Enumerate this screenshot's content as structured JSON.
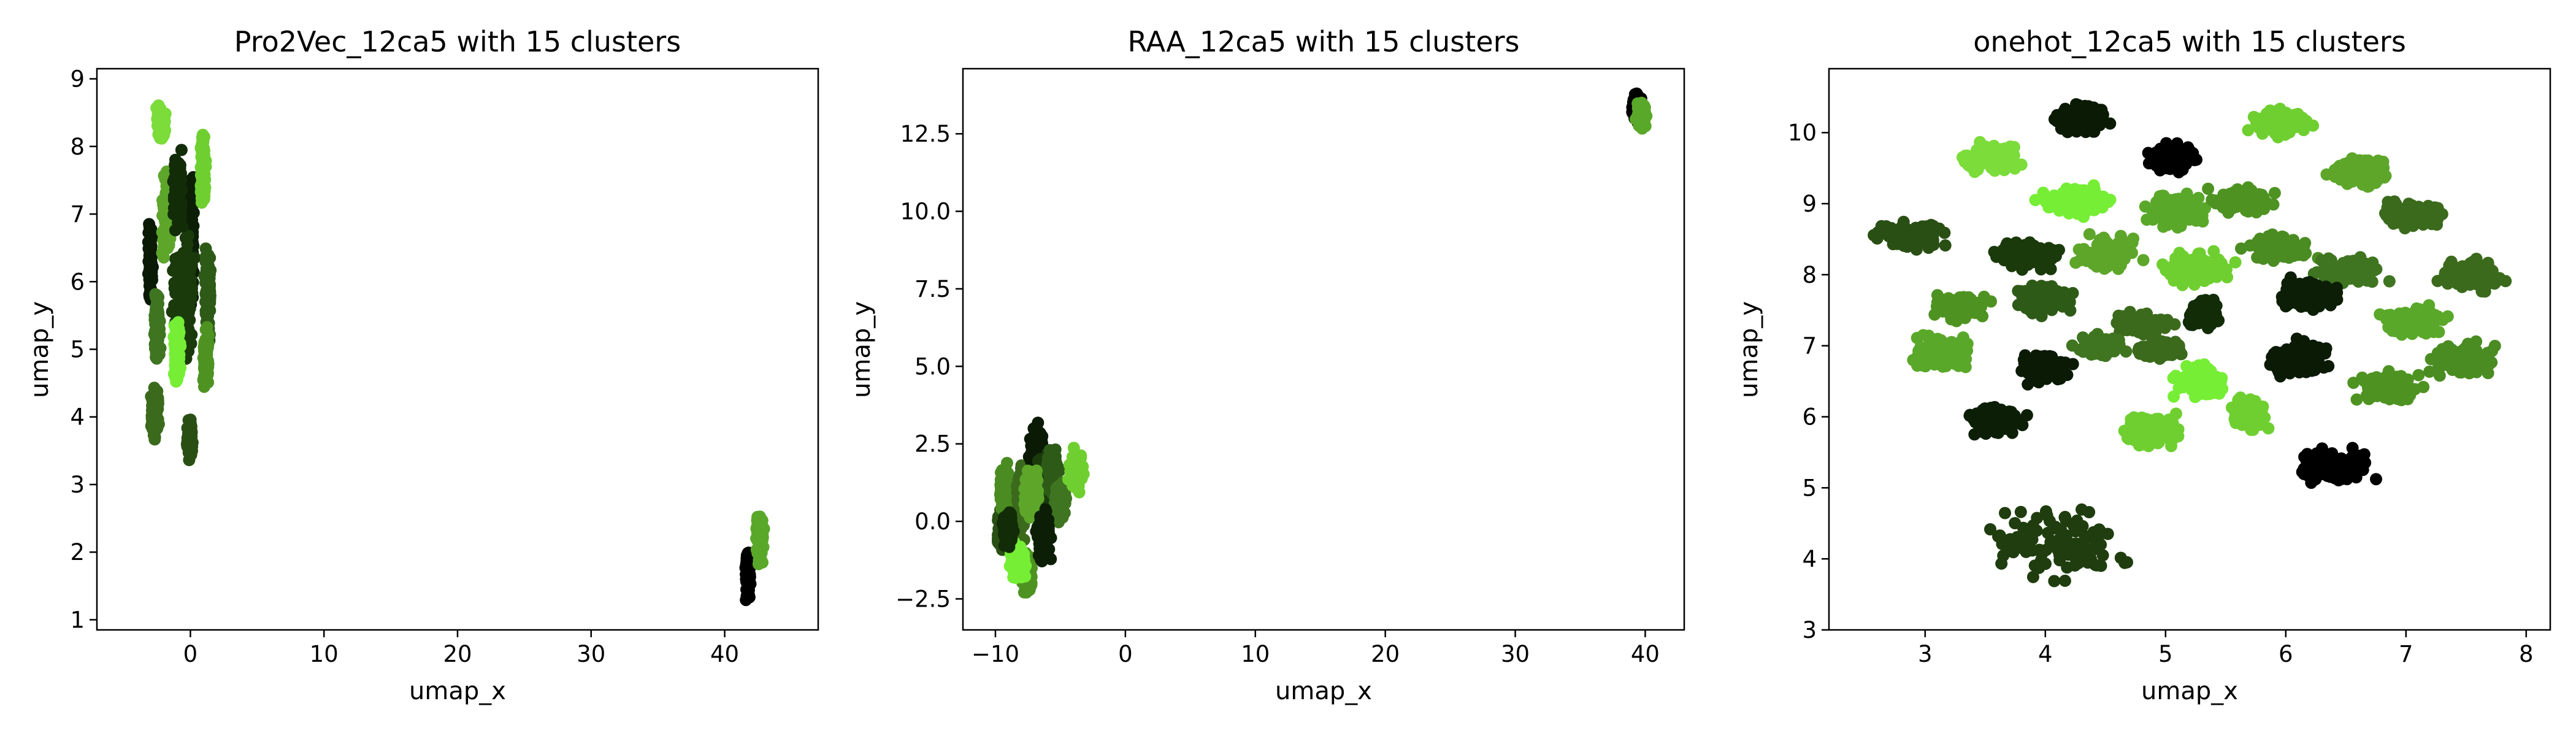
{
  "chart_data": [
    {
      "type": "scatter",
      "title": "Pro2Vec_12ca5 with 15 clusters",
      "xlabel": "umap_x",
      "ylabel": "umap_y",
      "xlim": [
        -7,
        47
      ],
      "ylim": [
        0.85,
        9.15
      ],
      "xticks": [
        0,
        10,
        20,
        30,
        40
      ],
      "yticks": [
        1,
        2,
        3,
        4,
        5,
        6,
        7,
        8,
        9
      ],
      "clusters": [
        {
          "x": [
            -3.2,
            -2.8
          ],
          "y": [
            5.5,
            7.0
          ],
          "color": "#0a1a05"
        },
        {
          "x": [
            -0.2,
            0.3
          ],
          "y": [
            5.6,
            8.0
          ],
          "color": "#0c1f06"
        },
        {
          "x": [
            -1.5,
            0.5
          ],
          "y": [
            4.5,
            7.0
          ],
          "color": "#1a3a0c"
        },
        {
          "x": [
            1.0,
            1.6
          ],
          "y": [
            5.0,
            6.6
          ],
          "color": "#2e5a18"
        },
        {
          "x": [
            -2.8,
            -2.2
          ],
          "y": [
            4.6,
            6.0
          ],
          "color": "#3f7520"
        },
        {
          "x": [
            -3.0,
            -2.3
          ],
          "y": [
            3.6,
            4.5
          ],
          "color": "#3b6a1c"
        },
        {
          "x": [
            -0.3,
            0.2
          ],
          "y": [
            3.3,
            4.1
          ],
          "color": "#2a4f14"
        },
        {
          "x": [
            -2.6,
            -1.8
          ],
          "y": [
            8.0,
            8.7
          ],
          "color": "#7bdc3a"
        },
        {
          "x": [
            0.7,
            1.2
          ],
          "y": [
            7.0,
            8.3
          ],
          "color": "#6fcf30"
        },
        {
          "x": [
            -2.2,
            -1.4
          ],
          "y": [
            6.2,
            7.8
          ],
          "color": "#5da62a"
        },
        {
          "x": [
            -1.3,
            -0.7
          ],
          "y": [
            4.3,
            5.7
          ],
          "color": "#76ee35"
        },
        {
          "x": [
            0.9,
            1.4
          ],
          "y": [
            4.3,
            5.4
          ],
          "color": "#4e9322"
        },
        {
          "x": [
            41.5,
            42.0
          ],
          "y": [
            1.2,
            2.1
          ],
          "color": "#000000"
        },
        {
          "x": [
            42.3,
            43.0
          ],
          "y": [
            1.7,
            2.7
          ],
          "color": "#5aa82a"
        },
        {
          "x": [
            -1.4,
            -0.5
          ],
          "y": [
            6.5,
            8.1
          ],
          "color": "#122c08"
        }
      ]
    },
    {
      "type": "scatter",
      "title": "RAA_12ca5 with 15 clusters",
      "xlabel": "umap_x",
      "ylabel": "umap_y",
      "xlim": [
        -12.5,
        43.0
      ],
      "ylim": [
        -3.5,
        14.6
      ],
      "xticks": [
        -10,
        0,
        10,
        20,
        30,
        40
      ],
      "yticks": [
        -2.5,
        0.0,
        2.5,
        5.0,
        7.5,
        10.0,
        12.5
      ],
      "clusters": [
        {
          "x": [
            -10.0,
            -9.0
          ],
          "y": [
            -1.2,
            0.5
          ],
          "color": "#2a4f14"
        },
        {
          "x": [
            -9.8,
            -8.8
          ],
          "y": [
            0.2,
            2.0
          ],
          "color": "#4a8c22"
        },
        {
          "x": [
            -8.5,
            -7.5
          ],
          "y": [
            -1.0,
            2.5
          ],
          "color": "#3b6a1c"
        },
        {
          "x": [
            -7.5,
            -6.2
          ],
          "y": [
            1.0,
            3.3
          ],
          "color": "#0a1a05"
        },
        {
          "x": [
            -7.0,
            -5.8
          ],
          "y": [
            -0.5,
            2.5
          ],
          "color": "#1a3a0c"
        },
        {
          "x": [
            -6.2,
            -5.0
          ],
          "y": [
            0.5,
            2.7
          ],
          "color": "#2e5a18"
        },
        {
          "x": [
            -5.5,
            -4.5
          ],
          "y": [
            -0.3,
            1.5
          ],
          "color": "#3f7520"
        },
        {
          "x": [
            -4.5,
            -3.0
          ],
          "y": [
            0.8,
            2.4
          ],
          "color": "#6fcf30"
        },
        {
          "x": [
            -8.0,
            -7.0
          ],
          "y": [
            -2.5,
            -1.0
          ],
          "color": "#4e9322"
        },
        {
          "x": [
            -9.0,
            -7.5
          ],
          "y": [
            -2.0,
            -0.5
          ],
          "color": "#76ee35"
        },
        {
          "x": [
            -8.0,
            -6.5
          ],
          "y": [
            0.0,
            2.0
          ],
          "color": "#5da62a"
        },
        {
          "x": [
            -9.5,
            -8.5
          ],
          "y": [
            -1.0,
            0.5
          ],
          "color": "#122c08"
        },
        {
          "x": [
            -7.0,
            -5.5
          ],
          "y": [
            -1.5,
            0.5
          ],
          "color": "#0c1f06"
        },
        {
          "x": [
            38.8,
            39.8
          ],
          "y": [
            12.8,
            13.9
          ],
          "color": "#000000"
        },
        {
          "x": [
            39.2,
            40.2
          ],
          "y": [
            12.6,
            13.6
          ],
          "color": "#5aa82a"
        }
      ]
    },
    {
      "type": "scatter",
      "title": "onehot_12ca5 with 15 clusters",
      "xlabel": "umap_x",
      "ylabel": "umap_y",
      "xlim": [
        2.2,
        8.2
      ],
      "ylim": [
        3.0,
        10.9
      ],
      "xticks": [
        3,
        4,
        5,
        6,
        7,
        8
      ],
      "yticks": [
        3,
        4,
        5,
        6,
        7,
        8,
        9,
        10
      ],
      "clusters": [
        {
          "x": [
            4.0,
            4.6
          ],
          "y": [
            9.9,
            10.5
          ],
          "color": "#0a1a05"
        },
        {
          "x": [
            4.8,
            5.3
          ],
          "y": [
            9.4,
            9.9
          ],
          "color": "#000000"
        },
        {
          "x": [
            5.6,
            6.3
          ],
          "y": [
            9.9,
            10.4
          ],
          "color": "#6fcf30"
        },
        {
          "x": [
            3.2,
            3.9
          ],
          "y": [
            9.4,
            9.9
          ],
          "color": "#7bdc3a"
        },
        {
          "x": [
            6.3,
            6.9
          ],
          "y": [
            9.2,
            9.7
          ],
          "color": "#5da62a"
        },
        {
          "x": [
            3.9,
            4.6
          ],
          "y": [
            8.8,
            9.3
          ],
          "color": "#76ee35"
        },
        {
          "x": [
            4.8,
            5.4
          ],
          "y": [
            8.6,
            9.2
          ],
          "color": "#5aa82a"
        },
        {
          "x": [
            5.3,
            6.0
          ],
          "y": [
            8.8,
            9.3
          ],
          "color": "#4e9322"
        },
        {
          "x": [
            2.5,
            3.3
          ],
          "y": [
            8.3,
            8.8
          ],
          "color": "#2a4f14"
        },
        {
          "x": [
            6.7,
            7.4
          ],
          "y": [
            8.6,
            9.1
          ],
          "color": "#3b6a1c"
        },
        {
          "x": [
            3.5,
            4.2
          ],
          "y": [
            8.0,
            8.6
          ],
          "color": "#1a3a0c"
        },
        {
          "x": [
            4.2,
            4.9
          ],
          "y": [
            8.0,
            8.6
          ],
          "color": "#5da62a"
        },
        {
          "x": [
            4.9,
            5.6
          ],
          "y": [
            7.8,
            8.4
          ],
          "color": "#6fcf30"
        },
        {
          "x": [
            5.6,
            6.3
          ],
          "y": [
            8.1,
            8.6
          ],
          "color": "#4a8c22"
        },
        {
          "x": [
            6.2,
            6.9
          ],
          "y": [
            7.8,
            8.3
          ],
          "color": "#3f7520"
        },
        {
          "x": [
            7.2,
            7.9
          ],
          "y": [
            7.7,
            8.3
          ],
          "color": "#3b6a1c"
        },
        {
          "x": [
            3.0,
            3.6
          ],
          "y": [
            7.3,
            7.8
          ],
          "color": "#4e9322"
        },
        {
          "x": [
            3.7,
            4.3
          ],
          "y": [
            7.4,
            7.9
          ],
          "color": "#2e5a18"
        },
        {
          "x": [
            4.5,
            5.1
          ],
          "y": [
            7.1,
            7.5
          ],
          "color": "#3b6a1c"
        },
        {
          "x": [
            5.1,
            5.5
          ],
          "y": [
            7.2,
            7.7
          ],
          "color": "#122c08"
        },
        {
          "x": [
            5.9,
            6.5
          ],
          "y": [
            7.4,
            8.0
          ],
          "color": "#0c1f06"
        },
        {
          "x": [
            6.7,
            7.4
          ],
          "y": [
            7.1,
            7.6
          ],
          "color": "#5aa82a"
        },
        {
          "x": [
            2.8,
            3.5
          ],
          "y": [
            6.6,
            7.2
          ],
          "color": "#5aa82a"
        },
        {
          "x": [
            3.7,
            4.3
          ],
          "y": [
            6.4,
            7.0
          ],
          "color": "#0a1a05"
        },
        {
          "x": [
            4.2,
            4.7
          ],
          "y": [
            6.8,
            7.2
          ],
          "color": "#3f7520"
        },
        {
          "x": [
            4.7,
            5.2
          ],
          "y": [
            6.8,
            7.1
          ],
          "color": "#3b6a1c"
        },
        {
          "x": [
            5.0,
            5.6
          ],
          "y": [
            6.2,
            6.8
          ],
          "color": "#76ee35"
        },
        {
          "x": [
            5.8,
            6.4
          ],
          "y": [
            6.5,
            7.2
          ],
          "color": "#0a1a05"
        },
        {
          "x": [
            6.5,
            7.2
          ],
          "y": [
            6.1,
            6.7
          ],
          "color": "#4e9322"
        },
        {
          "x": [
            7.1,
            7.8
          ],
          "y": [
            6.5,
            7.1
          ],
          "color": "#4a8c22"
        },
        {
          "x": [
            3.3,
            3.9
          ],
          "y": [
            5.7,
            6.2
          ],
          "color": "#0c1f06"
        },
        {
          "x": [
            4.6,
            5.2
          ],
          "y": [
            5.5,
            6.1
          ],
          "color": "#6fcf30"
        },
        {
          "x": [
            5.5,
            5.9
          ],
          "y": [
            5.7,
            6.4
          ],
          "color": "#6fcf30"
        },
        {
          "x": [
            6.0,
            6.8
          ],
          "y": [
            5.0,
            5.6
          ],
          "color": "#000000"
        },
        {
          "x": [
            3.3,
            4.9
          ],
          "y": [
            3.5,
            5.0
          ],
          "color": "#1f3d0e"
        }
      ]
    }
  ]
}
